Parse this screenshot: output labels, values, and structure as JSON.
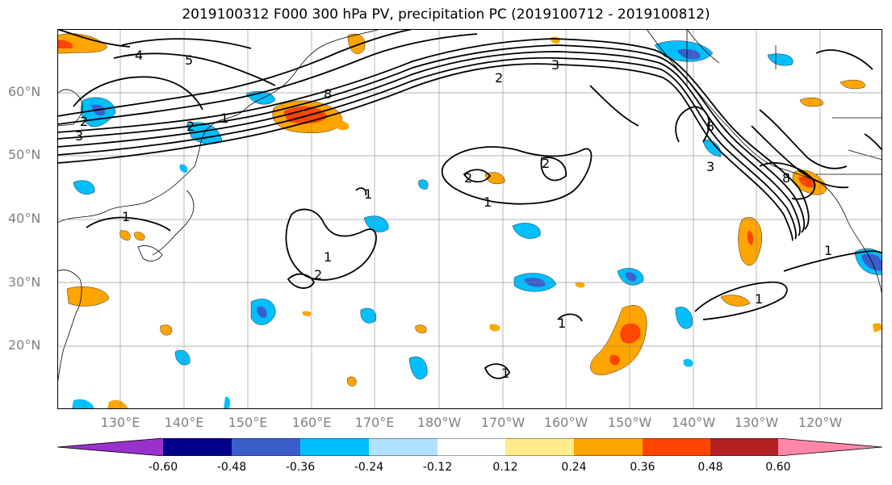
{
  "title": "2019100312 F000 300 hPa PV, precipitation PC (2019100712 - 2019100812)",
  "lat_labels": [
    "60°N",
    "50°N",
    "40°N",
    "30°N",
    "20°N"
  ],
  "lon_labels": [
    "130°E",
    "140°E",
    "150°E",
    "160°E",
    "170°E",
    "180°W",
    "170°W",
    "160°W",
    "150°W",
    "140°W",
    "130°W",
    "120°W"
  ],
  "contour_labels": [
    "4",
    "5",
    "2",
    "3",
    "2",
    "8",
    "1",
    "2",
    "3",
    "1",
    "2",
    "1",
    "1",
    "2",
    "1",
    "8",
    "3",
    "8",
    "2",
    "1",
    "1",
    "1",
    "1"
  ],
  "colorbar": {
    "ticks": [
      "-0.60",
      "-0.48",
      "-0.36",
      "-0.24",
      "-0.12",
      "0.12",
      "0.24",
      "0.36",
      "0.48",
      "0.60"
    ],
    "colors": [
      "#9932cc",
      "#00008b",
      "#3a5fcd",
      "#00bfff",
      "#b0e2ff",
      "#ffffff",
      "#ffec8b",
      "#ffa500",
      "#ff4500",
      "#b22222",
      "#ff88aa"
    ]
  },
  "colors": {
    "land_outline": "#000000",
    "contour": "#000000",
    "grid": "#808080",
    "axis_label": "#808080"
  }
}
